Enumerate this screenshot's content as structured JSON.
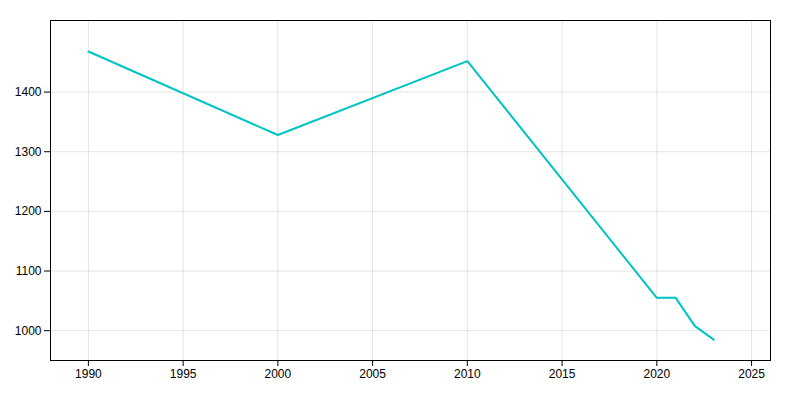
{
  "chart_data": {
    "type": "line",
    "x": [
      1990,
      2000,
      2010,
      2020,
      2021,
      2022,
      2023
    ],
    "values": [
      1468,
      1328,
      1452,
      1055,
      1055,
      1008,
      985
    ],
    "color": "#00C4C4",
    "xlim": [
      1988,
      2026
    ],
    "ylim": [
      950,
      1520
    ],
    "xticks": [
      1990,
      1995,
      2000,
      2005,
      2010,
      2015,
      2020,
      2025
    ],
    "yticks": [
      1000,
      1100,
      1200,
      1300,
      1400
    ],
    "grid": true
  }
}
